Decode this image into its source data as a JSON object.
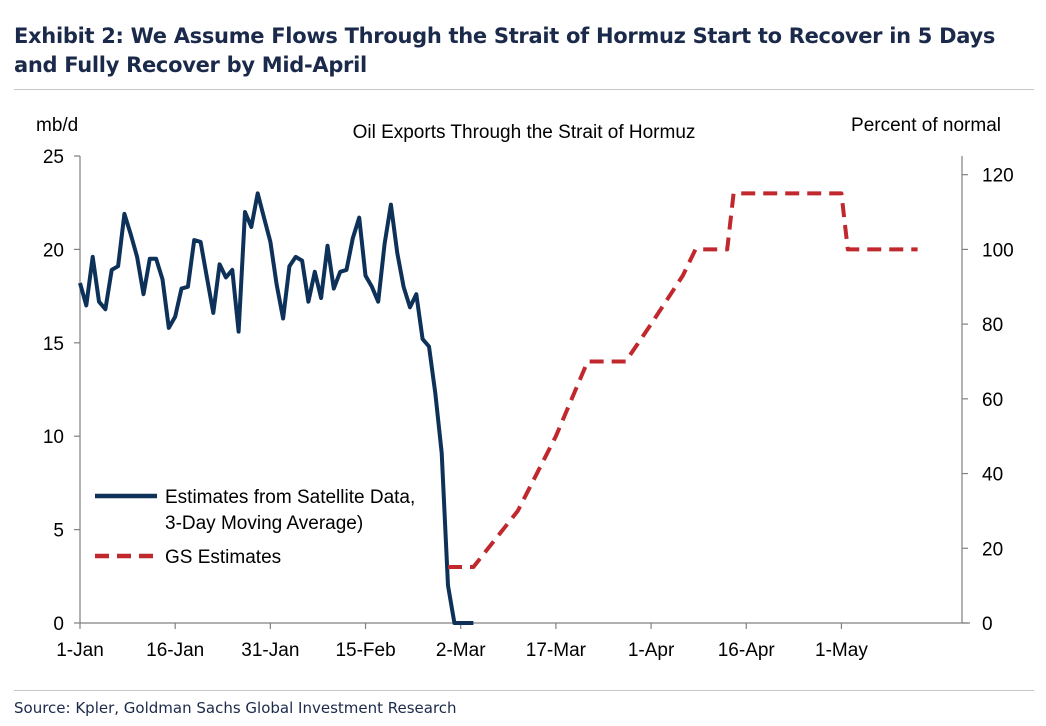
{
  "exhibit": {
    "title": "Exhibit 2: We Assume Flows Through the Strait of Hormuz Start to Recover in 5 Days and Fully Recover by Mid-April",
    "source": "Source: Kpler, Goldman Sachs Global Investment Research"
  },
  "chart_data": {
    "type": "line",
    "title": "Oil Exports Through the Strait of Hormuz",
    "left_axis": {
      "label": "mb/d",
      "range": [
        0,
        25
      ],
      "ticks": [
        0,
        5,
        10,
        15,
        20,
        25
      ]
    },
    "right_axis": {
      "label": "Percent of normal",
      "range": [
        0,
        125
      ],
      "ticks": [
        0,
        20,
        40,
        60,
        80,
        100,
        120
      ]
    },
    "x_axis": {
      "range": [
        "1-Jan",
        "20-May"
      ],
      "ticks": [
        {
          "label": "1-Jan",
          "day": 0
        },
        {
          "label": "16-Jan",
          "day": 15
        },
        {
          "label": "31-Jan",
          "day": 30
        },
        {
          "label": "15-Feb",
          "day": 45
        },
        {
          "label": "2-Mar",
          "day": 60
        },
        {
          "label": "17-Mar",
          "day": 75
        },
        {
          "label": "1-Apr",
          "day": 90
        },
        {
          "label": "16-Apr",
          "day": 105
        },
        {
          "label": "1-May",
          "day": 120
        }
      ]
    },
    "legend_position": "bottom-left",
    "series": [
      {
        "name": "Estimates from Satellite Data,",
        "name_line2": "3-Day Moving Average)",
        "axis": "left",
        "color": "#0d3158",
        "style": "solid",
        "points": [
          [
            "1-Jan",
            18.2
          ],
          [
            "2-Jan",
            17.0
          ],
          [
            "3-Jan",
            19.6
          ],
          [
            "4-Jan",
            17.2
          ],
          [
            "5-Jan",
            16.8
          ],
          [
            "6-Jan",
            18.9
          ],
          [
            "7-Jan",
            19.1
          ],
          [
            "8-Jan",
            21.9
          ],
          [
            "9-Jan",
            20.8
          ],
          [
            "10-Jan",
            19.6
          ],
          [
            "11-Jan",
            17.6
          ],
          [
            "12-Jan",
            19.5
          ],
          [
            "13-Jan",
            19.5
          ],
          [
            "14-Jan",
            18.4
          ],
          [
            "15-Jan",
            15.8
          ],
          [
            "16-Jan",
            16.4
          ],
          [
            "17-Jan",
            17.9
          ],
          [
            "18-Jan",
            18.0
          ],
          [
            "19-Jan",
            20.5
          ],
          [
            "20-Jan",
            20.4
          ],
          [
            "21-Jan",
            18.5
          ],
          [
            "22-Jan",
            16.6
          ],
          [
            "23-Jan",
            19.2
          ],
          [
            "24-Jan",
            18.5
          ],
          [
            "25-Jan",
            18.9
          ],
          [
            "26-Jan",
            15.6
          ],
          [
            "27-Jan",
            22.0
          ],
          [
            "28-Jan",
            21.2
          ],
          [
            "29-Jan",
            23.0
          ],
          [
            "30-Jan",
            21.7
          ],
          [
            "31-Jan",
            20.4
          ],
          [
            "1-Feb",
            18.1
          ],
          [
            "2-Feb",
            16.3
          ],
          [
            "3-Feb",
            19.1
          ],
          [
            "4-Feb",
            19.6
          ],
          [
            "5-Feb",
            19.4
          ],
          [
            "6-Feb",
            17.2
          ],
          [
            "7-Feb",
            18.8
          ],
          [
            "8-Feb",
            17.4
          ],
          [
            "9-Feb",
            20.2
          ],
          [
            "10-Feb",
            17.9
          ],
          [
            "11-Feb",
            18.8
          ],
          [
            "12-Feb",
            18.9
          ],
          [
            "13-Feb",
            20.6
          ],
          [
            "14-Feb",
            21.7
          ],
          [
            "15-Feb",
            18.6
          ],
          [
            "16-Feb",
            18.0
          ],
          [
            "17-Feb",
            17.2
          ],
          [
            "18-Feb",
            20.3
          ],
          [
            "19-Feb",
            22.4
          ],
          [
            "20-Feb",
            19.8
          ],
          [
            "21-Feb",
            18.0
          ],
          [
            "22-Feb",
            16.9
          ],
          [
            "23-Feb",
            17.6
          ],
          [
            "24-Feb",
            15.2
          ],
          [
            "25-Feb",
            14.8
          ],
          [
            "26-Feb",
            12.3
          ],
          [
            "27-Feb",
            9.1
          ],
          [
            "28-Feb",
            2.0
          ],
          [
            "1-Mar",
            0.0
          ],
          [
            "2-Mar",
            0.0
          ],
          [
            "3-Mar",
            0.0
          ],
          [
            "4-Mar",
            0.0
          ]
        ]
      },
      {
        "name": "GS Estimates",
        "axis": "right",
        "color": "#c0282d",
        "style": "dashed",
        "points": [
          [
            "28-Feb",
            15
          ],
          [
            "4-Mar",
            15
          ],
          [
            "11-Mar",
            30
          ],
          [
            "17-Mar",
            50
          ],
          [
            "22-Mar",
            70
          ],
          [
            "28-Mar",
            70
          ],
          [
            "1-Apr",
            80
          ],
          [
            "6-Apr",
            93
          ],
          [
            "8-Apr",
            100
          ],
          [
            "13-Apr",
            100
          ],
          [
            "14-Apr",
            115
          ],
          [
            "28-Apr",
            115
          ],
          [
            "1-May",
            115
          ],
          [
            "2-May",
            100
          ],
          [
            "10-May",
            100
          ],
          [
            "13-May",
            100
          ]
        ]
      }
    ]
  }
}
